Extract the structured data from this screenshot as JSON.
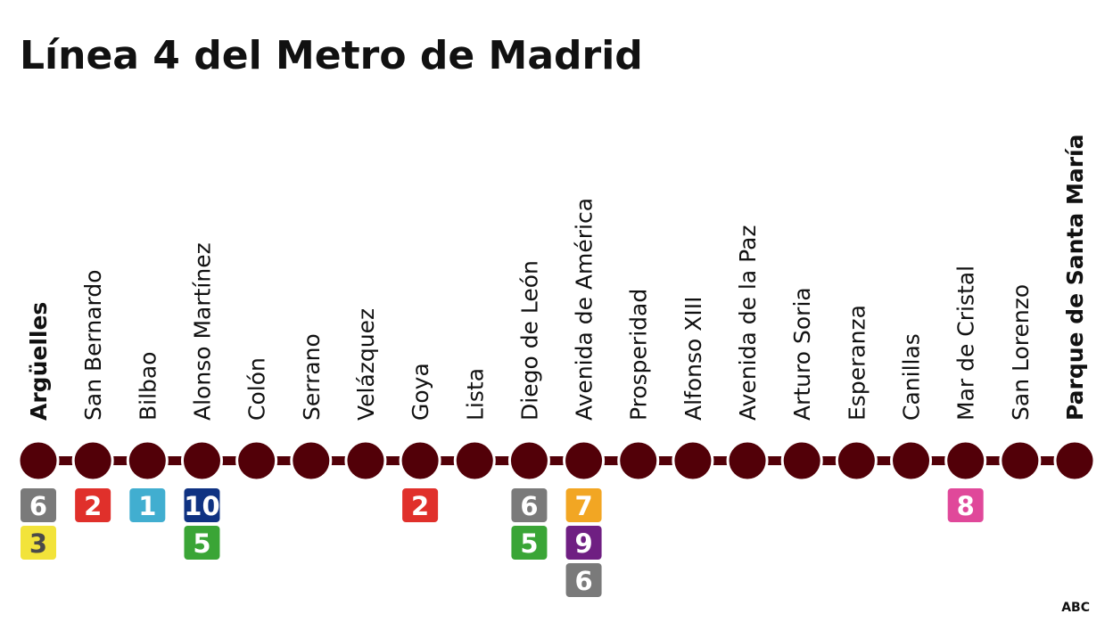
{
  "title": "Línea 4 del Metro de Madrid",
  "line_color": "#520008",
  "stations": [
    {
      "name": "Argüelles",
      "terminal": true,
      "connections": [
        {
          "line": "6",
          "color": "#7a7a7a",
          "text_color": "#ffffff"
        },
        {
          "line": "3",
          "color": "#f2e33a",
          "text_color": "#4a4a4a"
        }
      ]
    },
    {
      "name": "San Bernardo",
      "terminal": false,
      "connections": [
        {
          "line": "2",
          "color": "#e0302b",
          "text_color": "#ffffff"
        }
      ]
    },
    {
      "name": "Bilbao",
      "terminal": false,
      "connections": [
        {
          "line": "1",
          "color": "#41aed0",
          "text_color": "#ffffff"
        }
      ]
    },
    {
      "name": "Alonso Martínez",
      "terminal": false,
      "connections": [
        {
          "line": "10",
          "color": "#0f3282",
          "text_color": "#ffffff"
        },
        {
          "line": "5",
          "color": "#3aa536",
          "text_color": "#ffffff"
        }
      ]
    },
    {
      "name": "Colón",
      "terminal": false,
      "connections": []
    },
    {
      "name": "Serrano",
      "terminal": false,
      "connections": []
    },
    {
      "name": "Velázquez",
      "terminal": false,
      "connections": []
    },
    {
      "name": "Goya",
      "terminal": false,
      "connections": [
        {
          "line": "2",
          "color": "#e0302b",
          "text_color": "#ffffff"
        }
      ]
    },
    {
      "name": "Lista",
      "terminal": false,
      "connections": []
    },
    {
      "name": "Diego de León",
      "terminal": false,
      "connections": [
        {
          "line": "6",
          "color": "#7a7a7a",
          "text_color": "#ffffff"
        },
        {
          "line": "5",
          "color": "#3aa536",
          "text_color": "#ffffff"
        }
      ]
    },
    {
      "name": "Avenida de América",
      "terminal": false,
      "connections": [
        {
          "line": "7",
          "color": "#f2a623",
          "text_color": "#ffffff"
        },
        {
          "line": "9",
          "color": "#6f1f82",
          "text_color": "#ffffff"
        },
        {
          "line": "6",
          "color": "#7a7a7a",
          "text_color": "#ffffff"
        }
      ]
    },
    {
      "name": "Prosperidad",
      "terminal": false,
      "connections": []
    },
    {
      "name": "Alfonso XIII",
      "terminal": false,
      "connections": []
    },
    {
      "name": "Avenida de la Paz",
      "terminal": false,
      "connections": []
    },
    {
      "name": "Arturo Soria",
      "terminal": false,
      "connections": []
    },
    {
      "name": "Esperanza",
      "terminal": false,
      "connections": []
    },
    {
      "name": "Canillas",
      "terminal": false,
      "connections": []
    },
    {
      "name": "Mar de Cristal",
      "terminal": false,
      "connections": [
        {
          "line": "8",
          "color": "#e0489a",
          "text_color": "#ffffff"
        }
      ]
    },
    {
      "name": "San Lorenzo",
      "terminal": false,
      "connections": []
    },
    {
      "name": "Parque de Santa María",
      "terminal": true,
      "connections": []
    }
  ],
  "source": "ABC"
}
